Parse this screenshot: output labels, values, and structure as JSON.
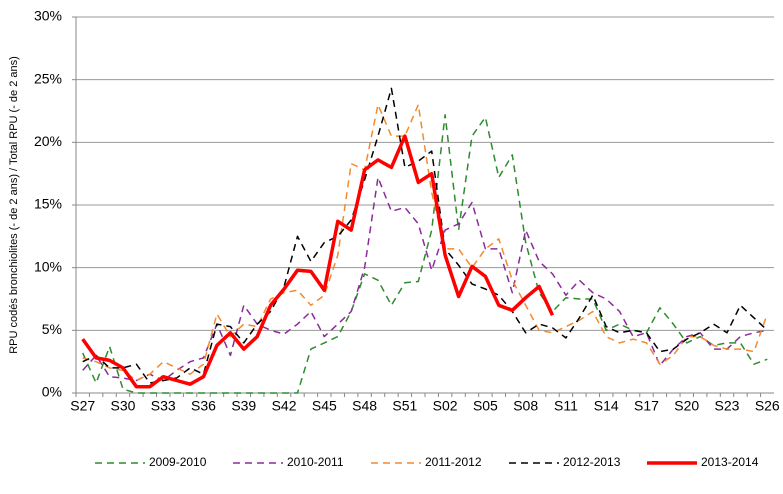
{
  "chart_data": {
    "type": "line",
    "y_label": "RPU codés bronchiolites (- de 2 ans) / Total RPU (- de 2 ans)",
    "categories": [
      "S27",
      null,
      null,
      "S30",
      null,
      null,
      "S33",
      null,
      null,
      "S36",
      null,
      null,
      "S39",
      null,
      null,
      "S42",
      null,
      null,
      "S45",
      null,
      null,
      "S48",
      null,
      null,
      "S51",
      null,
      null,
      "S02",
      null,
      null,
      "S05",
      null,
      null,
      "S08",
      null,
      null,
      "S11",
      null,
      null,
      "S14",
      null,
      null,
      "S17",
      null,
      null,
      "S20",
      null,
      null,
      "S23",
      null,
      null,
      "S26"
    ],
    "ylim": [
      0,
      30
    ],
    "yticks": [
      {
        "value": 0,
        "label": "0%"
      },
      {
        "value": 5,
        "label": "5%"
      },
      {
        "value": 10,
        "label": "10%"
      },
      {
        "value": 15,
        "label": "15%"
      },
      {
        "value": 20,
        "label": "20%"
      },
      {
        "value": 25,
        "label": "25%"
      },
      {
        "value": 30,
        "label": "30%"
      }
    ],
    "grid": true,
    "legend": "bottom",
    "series": [
      {
        "name": "2009-2010",
        "color": "#2e8b2e",
        "dashed": true,
        "values": [
          3.2,
          0.8,
          3.7,
          0.3,
          0,
          0,
          0,
          0,
          0,
          0,
          0,
          0,
          0,
          0,
          0,
          0,
          0,
          3.5,
          4.0,
          4.5,
          6.5,
          9.5,
          9.0,
          7.0,
          8.8,
          8.9,
          13,
          22.2,
          13,
          20.5,
          22.0,
          17.2,
          19.0,
          12,
          8,
          6.5,
          7.6,
          7.5,
          7.5,
          5.0,
          5.5,
          5.0,
          4.8,
          6.8,
          5.5,
          4.0,
          4.5,
          3.8,
          4.0,
          4.0,
          2.3,
          2.7
        ]
      },
      {
        "name": "2010-2011",
        "color": "#8b2b9b",
        "dashed": true,
        "values": [
          1.8,
          3.0,
          1.3,
          1.2,
          1.0,
          1.5,
          1.0,
          1.8,
          2.5,
          2.8,
          5.5,
          3.0,
          7.0,
          5.5,
          5.0,
          4.7,
          5.5,
          6.5,
          4.5,
          5.5,
          6.5,
          10,
          17.2,
          14.5,
          14.8,
          13.5,
          9.8,
          13.0,
          13.5,
          15.2,
          11.5,
          11.5,
          8.0,
          13.0,
          10.5,
          9.5,
          7.8,
          9.0,
          8.0,
          7.5,
          6.5,
          4.5,
          4.8,
          2.2,
          3.5,
          4.5,
          4.8,
          3.5,
          3.5,
          4.5,
          4.8,
          5.0
        ]
      },
      {
        "name": "2011-2012",
        "color": "#f28a2e",
        "dashed": true,
        "values": [
          2.8,
          2.5,
          2.0,
          1.8,
          1.0,
          1.5,
          2.5,
          2.0,
          1.5,
          2.3,
          6.3,
          4.5,
          5.5,
          5.3,
          7.5,
          8.0,
          8.2,
          7.0,
          7.8,
          11.0,
          18.3,
          17.8,
          23.0,
          20.5,
          20.5,
          23.0,
          16.0,
          11.5,
          11.5,
          10.0,
          11.5,
          12.3,
          9.0,
          7.0,
          5.0,
          4.8,
          5.3,
          5.8,
          6.5,
          4.5,
          4.0,
          4.3,
          4.0,
          2.3,
          3.0,
          4.5,
          4.5,
          3.8,
          3.5,
          3.5,
          3.3,
          6.3
        ]
      },
      {
        "name": "2012-2013",
        "color": "#000000",
        "dashed": true,
        "values": [
          2.5,
          3.0,
          2.0,
          2.0,
          2.3,
          0.8,
          1.0,
          1.2,
          2.0,
          1.5,
          5.5,
          5.3,
          4.0,
          5.5,
          6.5,
          8.5,
          12.5,
          10.5,
          12.0,
          12.5,
          13.8,
          17.0,
          20.5,
          24.3,
          18.0,
          18.5,
          19.3,
          11.5,
          10.2,
          8.7,
          8.3,
          7.8,
          6.5,
          4.8,
          5.5,
          5.2,
          4.4,
          6.0,
          7.8,
          5.3,
          4.8,
          5.0,
          4.8,
          3.3,
          3.5,
          4.3,
          4.8,
          5.5,
          4.8,
          7.0,
          6.0,
          5.0
        ]
      },
      {
        "name": "2013-2014",
        "color": "#ff0000",
        "dashed": false,
        "values": [
          4.3,
          2.8,
          2.6,
          2.0,
          0.5,
          0.5,
          1.3,
          1.0,
          0.7,
          1.3,
          3.8,
          4.8,
          3.5,
          4.5,
          7.0,
          8.3,
          9.8,
          9.7,
          8.2,
          13.7,
          13.0,
          17.8,
          18.6,
          18.0,
          20.5,
          16.8,
          17.5,
          11.0,
          7.7,
          10.1,
          9.3,
          7.0,
          6.6,
          7.6,
          8.5,
          6.2,
          null,
          null,
          null,
          null,
          null,
          null,
          null,
          null,
          null,
          null,
          null,
          null,
          null,
          null,
          null,
          null
        ]
      }
    ]
  }
}
